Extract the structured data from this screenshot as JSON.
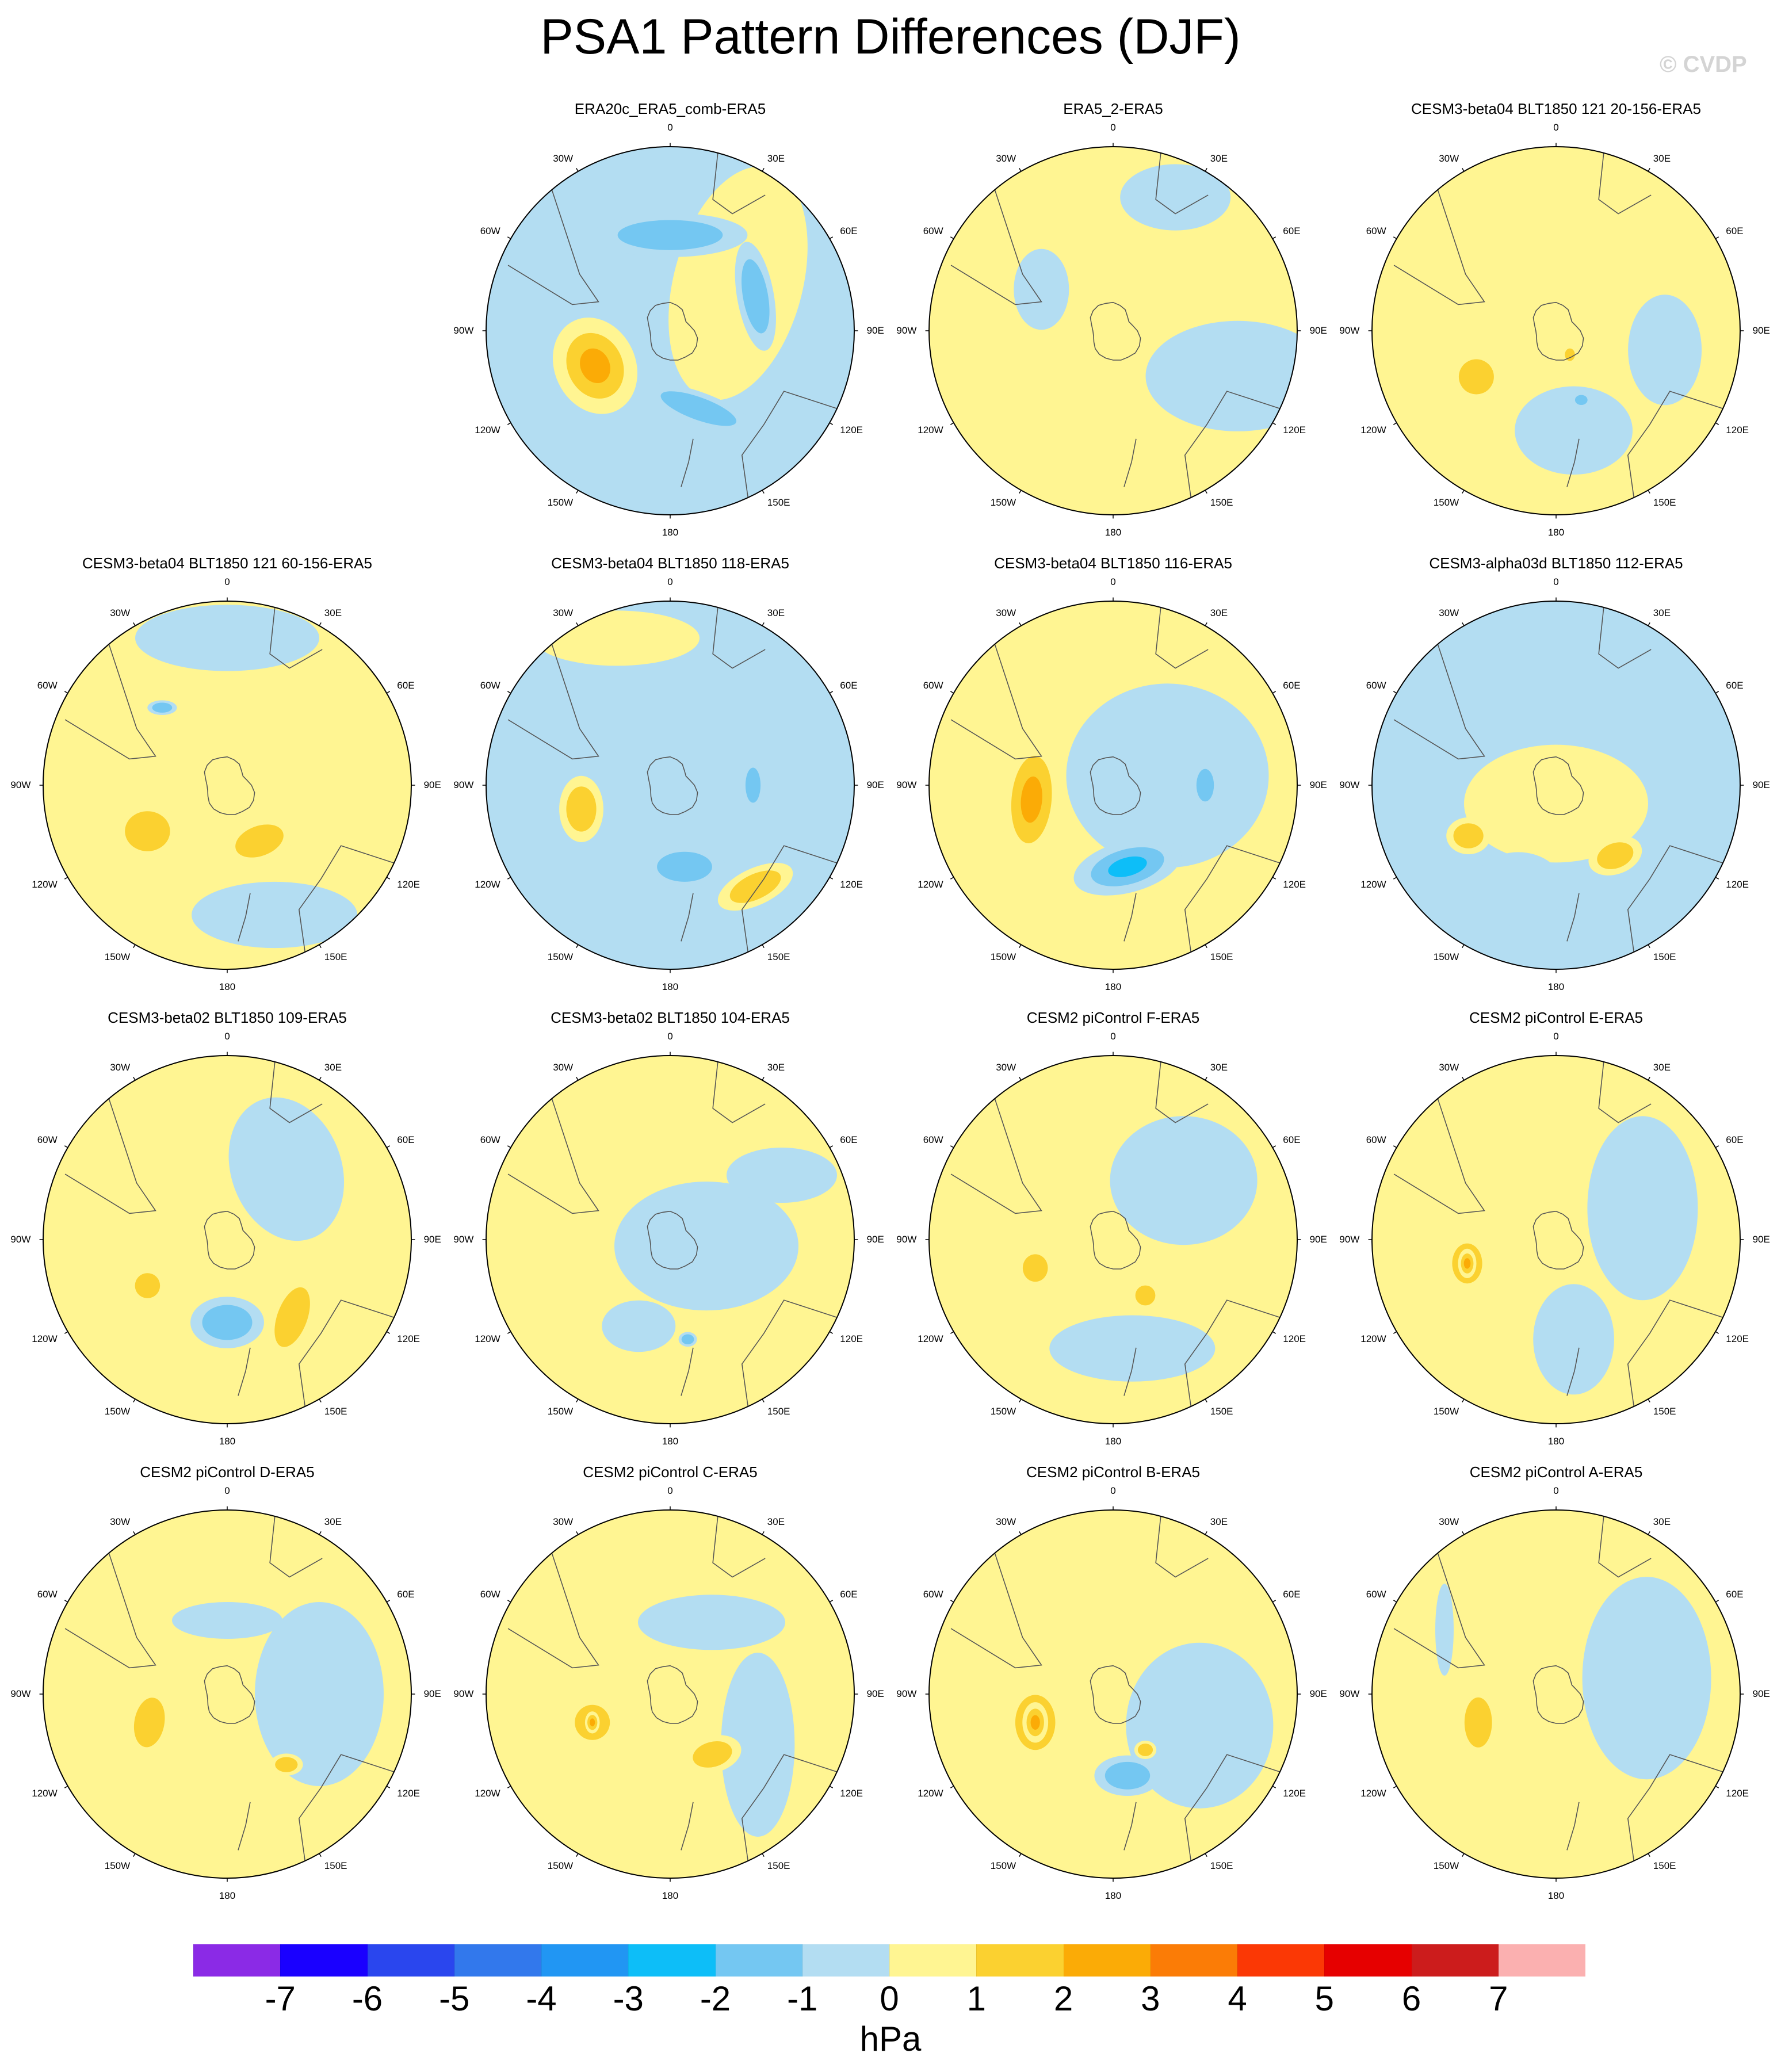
{
  "title": "PSA1 Pattern Differences (DJF)",
  "watermark": "© CVDP",
  "lon_labels": [
    "0",
    "30E",
    "60E",
    "90E",
    "120E",
    "150E",
    "180",
    "150W",
    "120W",
    "90W",
    "60W",
    "30W"
  ],
  "colors": {
    "land_outline": "#555555",
    "levels": [
      "#8b2ae6",
      "#1a00ff",
      "#2a46ee",
      "#3278ec",
      "#2196f3",
      "#0dbef8",
      "#74c7f2",
      "#b3ddf2",
      "#fff592",
      "#fbd130",
      "#fbab06",
      "#fb7c06",
      "#fb3805",
      "#e60000",
      "#cc1c1c",
      "#fbb0b0"
    ]
  },
  "colorbar": {
    "ticks": [
      "-7",
      "-6",
      "-5",
      "-4",
      "-3",
      "-2",
      "-1",
      "0",
      "1",
      "2",
      "3",
      "4",
      "5",
      "6",
      "7"
    ],
    "units": "hPa"
  },
  "panels": [
    {
      "title": "ERA20c_ERA5_comb-ERA5",
      "base": "neg",
      "blobs": [
        {
          "lon": 55,
          "r": 0.45,
          "rx": 0.35,
          "ry": 0.65,
          "rot": 15,
          "lv": 1
        },
        {
          "lon": 0,
          "r": 0.52,
          "rx": 0.42,
          "ry": 0.12,
          "rot": 0,
          "lv": -2
        },
        {
          "lon": 68,
          "r": 0.5,
          "rx": 0.1,
          "ry": 0.3,
          "rot": -10,
          "lv": -2
        },
        {
          "lon": -115,
          "r": 0.45,
          "rx": 0.22,
          "ry": 0.27,
          "rot": -25,
          "lv": 3
        },
        {
          "lon": 160,
          "r": 0.45,
          "rx": 0.32,
          "ry": 0.09,
          "rot": 20,
          "lv": -2
        }
      ]
    },
    {
      "title": "ERA5_2-ERA5",
      "base": "pos",
      "blobs": [
        {
          "lon": 110,
          "r": 0.72,
          "rx": 0.5,
          "ry": 0.3,
          "rot": 0,
          "lv": -1
        },
        {
          "lon": 25,
          "r": 0.8,
          "rx": 0.3,
          "ry": 0.18,
          "rot": 0,
          "lv": -1
        },
        {
          "lon": -60,
          "r": 0.45,
          "rx": 0.15,
          "ry": 0.22,
          "rot": 0,
          "lv": -1
        }
      ]
    },
    {
      "title": "CESM3-beta04 BLT1850 121 20-156-ERA5",
      "base": "pos",
      "blobs": [
        {
          "lon": -120,
          "r": 0.5,
          "rx": 0.14,
          "ry": 0.14,
          "rot": 0,
          "lv": 2
        },
        {
          "lon": 170,
          "r": 0.55,
          "rx": 0.32,
          "ry": 0.24,
          "rot": 0,
          "lv": -1
        },
        {
          "lon": 100,
          "r": 0.6,
          "rx": 0.2,
          "ry": 0.3,
          "rot": 0,
          "lv": -1
        },
        {
          "lon": 160,
          "r": 0.4,
          "rx": 0.05,
          "ry": 0.04,
          "rot": 0,
          "lv": -2
        },
        {
          "lon": 150,
          "r": 0.15,
          "rx": 0.04,
          "ry": 0.05,
          "rot": 0,
          "lv": 2
        }
      ]
    },
    {
      "title": "CESM3-beta04 BLT1850 121 60-156-ERA5",
      "base": "pos",
      "blobs": [
        {
          "lon": 0,
          "r": 0.8,
          "rx": 0.5,
          "ry": 0.18,
          "rot": 0,
          "lv": -1
        },
        {
          "lon": 160,
          "r": 0.75,
          "rx": 0.45,
          "ry": 0.18,
          "rot": 0,
          "lv": -1
        },
        {
          "lon": -120,
          "r": 0.5,
          "rx": 0.18,
          "ry": 0.16,
          "rot": 0,
          "lv": 2
        },
        {
          "lon": 150,
          "r": 0.35,
          "rx": 0.2,
          "ry": 0.12,
          "rot": -20,
          "lv": 2
        },
        {
          "lon": -40,
          "r": 0.55,
          "rx": 0.08,
          "ry": 0.04,
          "rot": 0,
          "lv": -2
        }
      ]
    },
    {
      "title": "CESM3-beta04 BLT1850 118-ERA5",
      "base": "neg",
      "blobs": [
        {
          "lon": -105,
          "r": 0.5,
          "rx": 0.12,
          "ry": 0.18,
          "rot": 0,
          "lv": 2
        },
        {
          "lon": 170,
          "r": 0.45,
          "rx": 0.22,
          "ry": 0.12,
          "rot": 0,
          "lv": -2
        },
        {
          "lon": 140,
          "r": 0.72,
          "rx": 0.22,
          "ry": 0.1,
          "rot": -25,
          "lv": 2
        },
        {
          "lon": 90,
          "r": 0.45,
          "rx": 0.06,
          "ry": 0.14,
          "rot": 0,
          "lv": -2
        },
        {
          "lon": -20,
          "r": 0.85,
          "rx": 0.45,
          "ry": 0.15,
          "rot": 0,
          "lv": 1
        }
      ]
    },
    {
      "title": "CESM3-beta04 BLT1850 116-ERA5",
      "base": "pos",
      "blobs": [
        {
          "lon": 80,
          "r": 0.3,
          "rx": 0.55,
          "ry": 0.5,
          "rot": 0,
          "lv": -1
        },
        {
          "lon": -100,
          "r": 0.45,
          "rx": 0.16,
          "ry": 0.35,
          "rot": 5,
          "lv": 3
        },
        {
          "lon": 170,
          "r": 0.45,
          "rx": 0.3,
          "ry": 0.14,
          "rot": -15,
          "lv": -3
        },
        {
          "lon": 90,
          "r": 0.5,
          "rx": 0.07,
          "ry": 0.13,
          "rot": 0,
          "lv": -2
        }
      ]
    },
    {
      "title": "CESM3-alpha03d BLT1850 112-ERA5",
      "base": "neg",
      "blobs": [
        {
          "lon": 180,
          "r": 0.1,
          "rx": 0.5,
          "ry": 0.32,
          "rot": 0,
          "lv": 1
        },
        {
          "lon": -120,
          "r": 0.55,
          "rx": 0.12,
          "ry": 0.1,
          "rot": 0,
          "lv": 2
        },
        {
          "lon": 140,
          "r": 0.5,
          "rx": 0.15,
          "ry": 0.1,
          "rot": -20,
          "lv": 2
        },
        {
          "lon": -160,
          "r": 0.6,
          "rx": 0.25,
          "ry": 0.2,
          "rot": 0,
          "lv": -1
        }
      ]
    },
    {
      "title": "CESM3-beta02 BLT1850 109-ERA5",
      "base": "pos",
      "blobs": [
        {
          "lon": 40,
          "r": 0.5,
          "rx": 0.3,
          "ry": 0.4,
          "rot": -20,
          "lv": -1
        },
        {
          "lon": -120,
          "r": 0.5,
          "rx": 0.1,
          "ry": 0.1,
          "rot": 0,
          "lv": 2
        },
        {
          "lon": 180,
          "r": 0.45,
          "rx": 0.2,
          "ry": 0.14,
          "rot": 0,
          "lv": -2
        },
        {
          "lon": 140,
          "r": 0.55,
          "rx": 0.12,
          "ry": 0.25,
          "rot": 20,
          "lv": 2
        }
      ]
    },
    {
      "title": "CESM3-beta02 BLT1850 104-ERA5",
      "base": "pos",
      "blobs": [
        {
          "lon": 100,
          "r": 0.2,
          "rx": 0.5,
          "ry": 0.35,
          "rot": 0,
          "lv": -1
        },
        {
          "lon": -160,
          "r": 0.5,
          "rx": 0.2,
          "ry": 0.14,
          "rot": 0,
          "lv": -1
        },
        {
          "lon": 60,
          "r": 0.7,
          "rx": 0.3,
          "ry": 0.15,
          "rot": 0,
          "lv": -1
        },
        {
          "lon": 170,
          "r": 0.55,
          "rx": 0.05,
          "ry": 0.04,
          "rot": 0,
          "lv": -2
        }
      ]
    },
    {
      "title": "CESM2 piControl F-ERA5",
      "base": "pos",
      "blobs": [
        {
          "lon": 50,
          "r": 0.5,
          "rx": 0.4,
          "ry": 0.35,
          "rot": 0,
          "lv": -1
        },
        {
          "lon": 170,
          "r": 0.6,
          "rx": 0.45,
          "ry": 0.18,
          "rot": 0,
          "lv": -1
        },
        {
          "lon": -110,
          "r": 0.45,
          "rx": 0.1,
          "ry": 0.11,
          "rot": 0,
          "lv": 2
        },
        {
          "lon": 150,
          "r": 0.35,
          "rx": 0.08,
          "ry": 0.08,
          "rot": 0,
          "lv": 2
        }
      ]
    },
    {
      "title": "CESM2 piControl E-ERA5",
      "base": "pos",
      "blobs": [
        {
          "lon": 70,
          "r": 0.5,
          "rx": 0.3,
          "ry": 0.5,
          "rot": 0,
          "lv": -1
        },
        {
          "lon": 170,
          "r": 0.55,
          "rx": 0.22,
          "ry": 0.3,
          "rot": 0,
          "lv": -1
        },
        {
          "lon": -105,
          "r": 0.5,
          "rx": 0.12,
          "ry": 0.16,
          "rot": 0,
          "lv": 2
        },
        {
          "lon": -105,
          "r": 0.5,
          "rx": 0.05,
          "ry": 0.08,
          "rot": 0,
          "lv": 3
        }
      ]
    },
    {
      "title": "CESM2 piControl D-ERA5",
      "base": "pos",
      "blobs": [
        {
          "lon": 90,
          "r": 0.5,
          "rx": 0.35,
          "ry": 0.5,
          "rot": 0,
          "lv": -1
        },
        {
          "lon": -110,
          "r": 0.45,
          "rx": 0.12,
          "ry": 0.2,
          "rot": 10,
          "lv": 2
        },
        {
          "lon": 140,
          "r": 0.5,
          "rx": 0.09,
          "ry": 0.06,
          "rot": 0,
          "lv": 2
        },
        {
          "lon": 0,
          "r": 0.4,
          "rx": 0.3,
          "ry": 0.1,
          "rot": 0,
          "lv": -1
        }
      ]
    },
    {
      "title": "CESM2 piControl C-ERA5",
      "base": "pos",
      "blobs": [
        {
          "lon": 30,
          "r": 0.45,
          "rx": 0.4,
          "ry": 0.15,
          "rot": 0,
          "lv": -1
        },
        {
          "lon": 120,
          "r": 0.55,
          "rx": 0.2,
          "ry": 0.5,
          "rot": 0,
          "lv": -1
        },
        {
          "lon": -110,
          "r": 0.45,
          "rx": 0.14,
          "ry": 0.14,
          "rot": 0,
          "lv": 2
        },
        {
          "lon": -110,
          "r": 0.45,
          "rx": 0.04,
          "ry": 0.06,
          "rot": 0,
          "lv": 3
        },
        {
          "lon": 145,
          "r": 0.4,
          "rx": 0.16,
          "ry": 0.1,
          "rot": -15,
          "lv": 2
        }
      ]
    },
    {
      "title": "CESM2 piControl B-ERA5",
      "base": "pos",
      "blobs": [
        {
          "lon": 110,
          "r": 0.5,
          "rx": 0.4,
          "ry": 0.45,
          "rot": 0,
          "lv": -1
        },
        {
          "lon": -110,
          "r": 0.45,
          "rx": 0.16,
          "ry": 0.22,
          "rot": 0,
          "lv": 2
        },
        {
          "lon": -110,
          "r": 0.45,
          "rx": 0.07,
          "ry": 0.11,
          "rot": 0,
          "lv": 3
        },
        {
          "lon": 170,
          "r": 0.45,
          "rx": 0.18,
          "ry": 0.11,
          "rot": 0,
          "lv": -2
        },
        {
          "lon": 150,
          "r": 0.35,
          "rx": 0.06,
          "ry": 0.05,
          "rot": 0,
          "lv": 2
        }
      ]
    },
    {
      "title": "CESM2 piControl A-ERA5",
      "base": "pos",
      "blobs": [
        {
          "lon": 80,
          "r": 0.5,
          "rx": 0.35,
          "ry": 0.55,
          "rot": 0,
          "lv": -1
        },
        {
          "lon": -110,
          "r": 0.45,
          "rx": 0.11,
          "ry": 0.2,
          "rot": 0,
          "lv": 2
        },
        {
          "lon": -60,
          "r": 0.7,
          "rx": 0.05,
          "ry": 0.25,
          "rot": 0,
          "lv": -1
        }
      ]
    }
  ]
}
